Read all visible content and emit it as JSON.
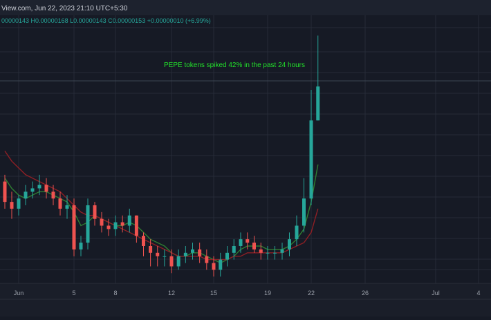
{
  "header": {
    "source_date": "View.com, Jun 22, 2023 21:10 UTC+5:30",
    "ohlc_line": "00000143  H0.00000168  L0.00000143  C0.00000153  +0.00000010 (+6.99%)"
  },
  "annotation": "PEPE tokens spiked 42% in the past 24 hours",
  "colors": {
    "background": "#161a25",
    "header_bg": "#1d222e",
    "axis_bg": "#1a1e29",
    "grid": "#262b38",
    "up": "#26a69a",
    "down": "#ef5350",
    "ma_fast": "#2e7d32",
    "ma_slow": "#8e1f25",
    "annotation": "#22e02a",
    "header_text": "#d1d4dc",
    "ohlc_text": "#26a69a",
    "axis_text": "#9ea3ad"
  },
  "chart_data": {
    "type": "candlestick",
    "title": "",
    "x_axis": {
      "type": "date",
      "ticks": [
        "Jun",
        "5",
        "8",
        "12",
        "15",
        "19",
        "22",
        "26",
        "Jul",
        "4"
      ],
      "range": [
        "2023-05-31",
        "2023-07-05"
      ]
    },
    "y_axis": {
      "range": [
        9.5e-07,
        1.74e-06
      ],
      "labels_visible": false
    },
    "grid": true,
    "last_candle": {
      "open": 1.43e-06,
      "high": 1.68e-06,
      "low": 1.43e-06,
      "close": 1.53e-06,
      "change": 1e-07,
      "change_pct": 6.99
    },
    "x": [
      "2023-05-31T00:00",
      "2023-05-31T12:00",
      "2023-06-01T00:00",
      "2023-06-01T12:00",
      "2023-06-02T00:00",
      "2023-06-02T12:00",
      "2023-06-03T00:00",
      "2023-06-03T12:00",
      "2023-06-04T00:00",
      "2023-06-04T12:00",
      "2023-06-05T00:00",
      "2023-06-05T12:00",
      "2023-06-06T00:00",
      "2023-06-06T12:00",
      "2023-06-07T00:00",
      "2023-06-07T12:00",
      "2023-06-08T00:00",
      "2023-06-08T12:00",
      "2023-06-09T00:00",
      "2023-06-09T12:00",
      "2023-06-10T00:00",
      "2023-06-10T12:00",
      "2023-06-11T00:00",
      "2023-06-11T12:00",
      "2023-06-12T00:00",
      "2023-06-12T12:00",
      "2023-06-13T00:00",
      "2023-06-13T12:00",
      "2023-06-14T00:00",
      "2023-06-14T12:00",
      "2023-06-15T00:00",
      "2023-06-15T12:00",
      "2023-06-16T00:00",
      "2023-06-16T12:00",
      "2023-06-17T00:00",
      "2023-06-17T12:00",
      "2023-06-18T00:00",
      "2023-06-18T12:00",
      "2023-06-19T00:00",
      "2023-06-19T12:00",
      "2023-06-20T00:00",
      "2023-06-20T12:00",
      "2023-06-21T00:00",
      "2023-06-21T12:00",
      "2023-06-22T00:00",
      "2023-06-22T12:00"
    ],
    "series": [
      {
        "type": "candles",
        "open": [
          1.25,
          1.19,
          1.17,
          1.2,
          1.22,
          1.23,
          1.24,
          1.22,
          1.2,
          1.17,
          1.18,
          1.05,
          1.07,
          1.18,
          1.14,
          1.12,
          1.11,
          1.13,
          1.12,
          1.15,
          1.09,
          1.06,
          1.04,
          1.03,
          1.03,
          1.0,
          1.03,
          1.04,
          1.05,
          1.03,
          1.01,
          0.99,
          1.02,
          1.04,
          1.06,
          1.08,
          1.07,
          1.05,
          1.04,
          1.04,
          1.04,
          1.05,
          1.08,
          1.12,
          1.2,
          1.43
        ],
        "close": [
          1.19,
          1.17,
          1.2,
          1.22,
          1.23,
          1.24,
          1.22,
          1.2,
          1.17,
          1.18,
          1.05,
          1.07,
          1.18,
          1.14,
          1.12,
          1.11,
          1.13,
          1.12,
          1.15,
          1.09,
          1.06,
          1.04,
          1.03,
          1.03,
          1.0,
          1.03,
          1.04,
          1.05,
          1.03,
          1.01,
          0.99,
          1.02,
          1.04,
          1.06,
          1.08,
          1.07,
          1.05,
          1.04,
          1.04,
          1.04,
          1.05,
          1.08,
          1.12,
          1.2,
          1.43,
          1.53
        ],
        "high": [
          1.27,
          1.22,
          1.21,
          1.24,
          1.25,
          1.27,
          1.26,
          1.24,
          1.22,
          1.21,
          1.2,
          1.09,
          1.2,
          1.19,
          1.16,
          1.14,
          1.15,
          1.15,
          1.17,
          1.15,
          1.1,
          1.08,
          1.06,
          1.05,
          1.05,
          1.05,
          1.06,
          1.07,
          1.07,
          1.05,
          1.03,
          1.04,
          1.06,
          1.08,
          1.1,
          1.1,
          1.09,
          1.07,
          1.06,
          1.06,
          1.07,
          1.1,
          1.15,
          1.26,
          1.52,
          1.68
        ],
        "low": [
          1.17,
          1.14,
          1.15,
          1.18,
          1.2,
          1.21,
          1.2,
          1.18,
          1.15,
          1.14,
          1.03,
          1.03,
          1.05,
          1.12,
          1.1,
          1.09,
          1.09,
          1.1,
          1.1,
          1.07,
          1.03,
          1.0,
          1.0,
          1.0,
          0.98,
          0.99,
          1.01,
          1.02,
          1.01,
          0.99,
          0.97,
          0.97,
          1.0,
          1.02,
          1.04,
          1.05,
          1.04,
          1.02,
          1.02,
          1.02,
          1.02,
          1.03,
          1.06,
          1.1,
          1.18,
          1.43
        ]
      },
      {
        "type": "line",
        "role": "ma_fast",
        "values": [
          1.26,
          1.23,
          1.21,
          1.2,
          1.21,
          1.22,
          1.22,
          1.21,
          1.2,
          1.19,
          1.16,
          1.12,
          1.13,
          1.15,
          1.14,
          1.13,
          1.12,
          1.12,
          1.13,
          1.12,
          1.1,
          1.08,
          1.07,
          1.06,
          1.04,
          1.03,
          1.03,
          1.04,
          1.04,
          1.03,
          1.02,
          1.01,
          1.02,
          1.03,
          1.05,
          1.06,
          1.06,
          1.06,
          1.05,
          1.05,
          1.05,
          1.06,
          1.08,
          1.11,
          1.19,
          1.3
        ]
      },
      {
        "type": "line",
        "role": "ma_slow",
        "values": [
          1.34,
          1.31,
          1.29,
          1.27,
          1.26,
          1.25,
          1.24,
          1.23,
          1.22,
          1.2,
          1.18,
          1.16,
          1.15,
          1.15,
          1.14,
          1.13,
          1.12,
          1.11,
          1.1,
          1.09,
          1.08,
          1.07,
          1.06,
          1.05,
          1.04,
          1.03,
          1.03,
          1.03,
          1.03,
          1.02,
          1.02,
          1.02,
          1.02,
          1.03,
          1.03,
          1.04,
          1.04,
          1.04,
          1.04,
          1.04,
          1.04,
          1.05,
          1.06,
          1.07,
          1.1,
          1.17
        ]
      }
    ]
  }
}
